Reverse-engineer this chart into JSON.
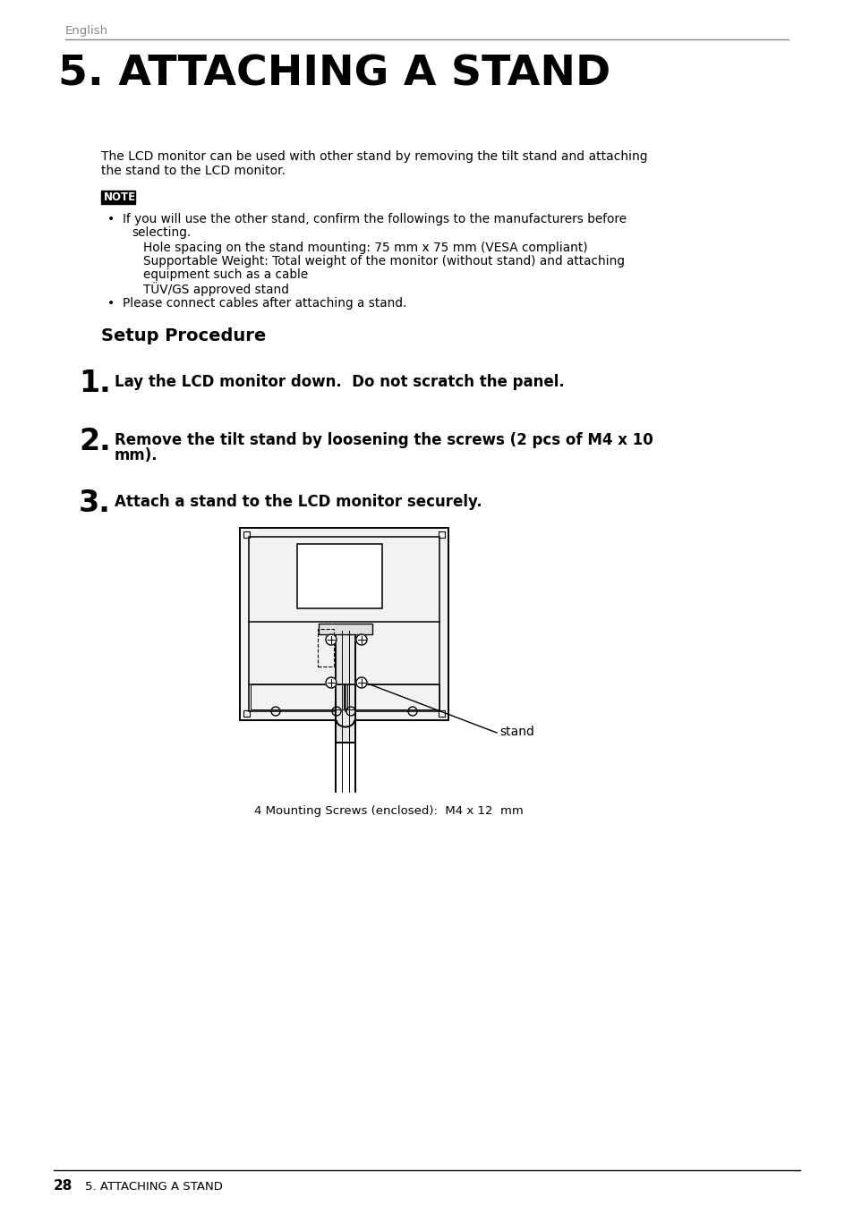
{
  "page_bg": "#ffffff",
  "header_text": "English",
  "header_color": "#888888",
  "header_line_color": "#888888",
  "title": "5. ATTACHING A STAND",
  "title_color": "#000000",
  "body_line1": "The LCD monitor can be used with other stand by removing the tilt stand and attaching",
  "body_line2": "the stand to the LCD monitor.",
  "note_label": "NOTE",
  "b1_main1": "If you will use the other stand, confirm the followings to the manufacturers before",
  "b1_main2": "   selecting.",
  "b1_sub1": "Hole spacing on the stand mounting: 75 mm x 75 mm (VESA compliant)",
  "b1_sub2": "Supportable Weight: Total weight of the monitor (without stand) and attaching",
  "b1_sub2b": "equipment such as a cable",
  "b1_sub3": "TÜV/GS approved stand",
  "bullet2": "Please connect cables after attaching a stand.",
  "setup_title": "Setup Procedure",
  "step1_num": "1.",
  "step1_text": "Lay the LCD monitor down.  Do not scratch the panel.",
  "step2_num": "2.",
  "step2_line1": "Remove the tilt stand by loosening the screws (2 pcs of M4 x 10",
  "step2_line2": "mm).",
  "step3_num": "3.",
  "step3_text": "Attach a stand to the LCD monitor securely.",
  "diagram_label": "stand",
  "caption": "4 Mounting Screws (enclosed):  M4 x 12  mm",
  "footer_line_color": "#000000",
  "footer_num": "28",
  "footer_text": "5. ATTACHING A STAND"
}
